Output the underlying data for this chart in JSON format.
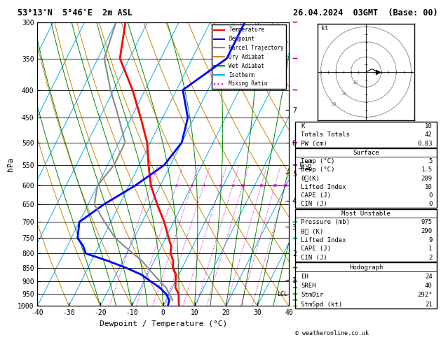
{
  "title_left": "53°13'N  5°46'E  2m ASL",
  "title_right": "26.04.2024  03GMT  (Base: 00)",
  "xlabel": "Dewpoint / Temperature (°C)",
  "ylabel_left": "hPa",
  "copyright": "© weatheronline.co.uk",
  "pressure_levels": [
    300,
    350,
    400,
    450,
    500,
    550,
    600,
    650,
    700,
    750,
    800,
    850,
    900,
    950,
    1000
  ],
  "temp_ticks": [
    -40,
    -30,
    -20,
    -10,
    0,
    10,
    20,
    30,
    40
  ],
  "mixing_ratio_values": [
    1,
    2,
    3,
    4,
    6,
    8,
    10,
    15,
    20,
    25
  ],
  "skew_factor": 45,
  "colors": {
    "temperature": "#ff0000",
    "dewpoint": "#0000ff",
    "parcel": "#888888",
    "dry_adiabat": "#cc8800",
    "wet_adiabat": "#008800",
    "isotherm": "#00aaff",
    "mixing_ratio": "#cc00cc",
    "background": "#ffffff",
    "grid": "#000000"
  },
  "temperature_profile": {
    "pressure": [
      1000,
      975,
      950,
      925,
      900,
      875,
      850,
      825,
      800,
      775,
      750,
      700,
      650,
      600,
      550,
      500,
      450,
      400,
      350,
      300
    ],
    "temp": [
      5,
      4,
      3,
      1,
      0,
      -1,
      -3,
      -4,
      -6,
      -7,
      -9,
      -13,
      -18,
      -23,
      -27,
      -31,
      -37,
      -44,
      -53,
      -57
    ]
  },
  "dewpoint_profile": {
    "pressure": [
      1000,
      975,
      950,
      925,
      900,
      875,
      850,
      825,
      800,
      775,
      750,
      700,
      650,
      600,
      550,
      500,
      450,
      400,
      350,
      300
    ],
    "temp": [
      1.5,
      1,
      -1,
      -4,
      -8,
      -12,
      -18,
      -25,
      -33,
      -35,
      -38,
      -40,
      -35,
      -28,
      -22,
      -20,
      -22,
      -28,
      -19,
      -19
    ]
  },
  "parcel_profile": {
    "pressure": [
      975,
      950,
      925,
      900,
      875,
      850,
      825,
      800,
      775,
      750,
      700,
      650,
      600,
      550,
      500,
      450,
      400,
      350,
      300
    ],
    "temp": [
      2,
      0,
      -2,
      -5,
      -8,
      -11,
      -14,
      -18,
      -22,
      -26,
      -32,
      -38,
      -40,
      -38,
      -38,
      -44,
      -51,
      -58,
      -60
    ]
  },
  "lcl_pressure": 950,
  "km_labels": [
    "1",
    "2",
    "3",
    "4",
    "5",
    "6",
    "7"
  ],
  "km_pressures": [
    895,
    800,
    715,
    640,
    570,
    500,
    435
  ],
  "surface_data": {
    "K": 10,
    "Totals_Totals": 42,
    "PW_cm": 0.83,
    "Temp_C": 5,
    "Dewp_C": 1.5,
    "theta_e_K": 289,
    "Lifted_Index": 10,
    "CAPE_J": 0,
    "CIN_J": 0
  },
  "most_unstable": {
    "Pressure_mb": 975,
    "theta_e_K": 290,
    "Lifted_Index": 9,
    "CAPE_J": 1,
    "CIN_J": 2
  },
  "hodograph": {
    "EH": 24,
    "SREH": 40,
    "StmDir": 292,
    "StmSpd_kt": 21
  },
  "legend_entries": [
    {
      "label": "Temperature",
      "color": "#ff0000",
      "style": "-"
    },
    {
      "label": "Dewpoint",
      "color": "#0000ff",
      "style": "-"
    },
    {
      "label": "Parcel Trajectory",
      "color": "#888888",
      "style": "-"
    },
    {
      "label": "Dry Adiabat",
      "color": "#cc8800",
      "style": "-"
    },
    {
      "label": "Wet Adiabat",
      "color": "#008800",
      "style": "-"
    },
    {
      "label": "Isotherm",
      "color": "#00aaff",
      "style": "-"
    },
    {
      "label": "Mixing Ratio",
      "color": "#cc00cc",
      "style": ":"
    }
  ],
  "wind_barbs": [
    {
      "pressure": 300,
      "color": "#990099"
    },
    {
      "pressure": 350,
      "color": "#990099"
    },
    {
      "pressure": 400,
      "color": "#990099"
    },
    {
      "pressure": 500,
      "color": "#990099"
    },
    {
      "pressure": 550,
      "color": "#990099"
    },
    {
      "pressure": 700,
      "color": "#009999"
    },
    {
      "pressure": 750,
      "color": "#009999"
    },
    {
      "pressure": 850,
      "color": "#009900"
    },
    {
      "pressure": 900,
      "color": "#009900"
    },
    {
      "pressure": 925,
      "color": "#009900"
    },
    {
      "pressure": 950,
      "color": "#009900"
    },
    {
      "pressure": 975,
      "color": "#009900"
    },
    {
      "pressure": 1000,
      "color": "#999900"
    }
  ]
}
